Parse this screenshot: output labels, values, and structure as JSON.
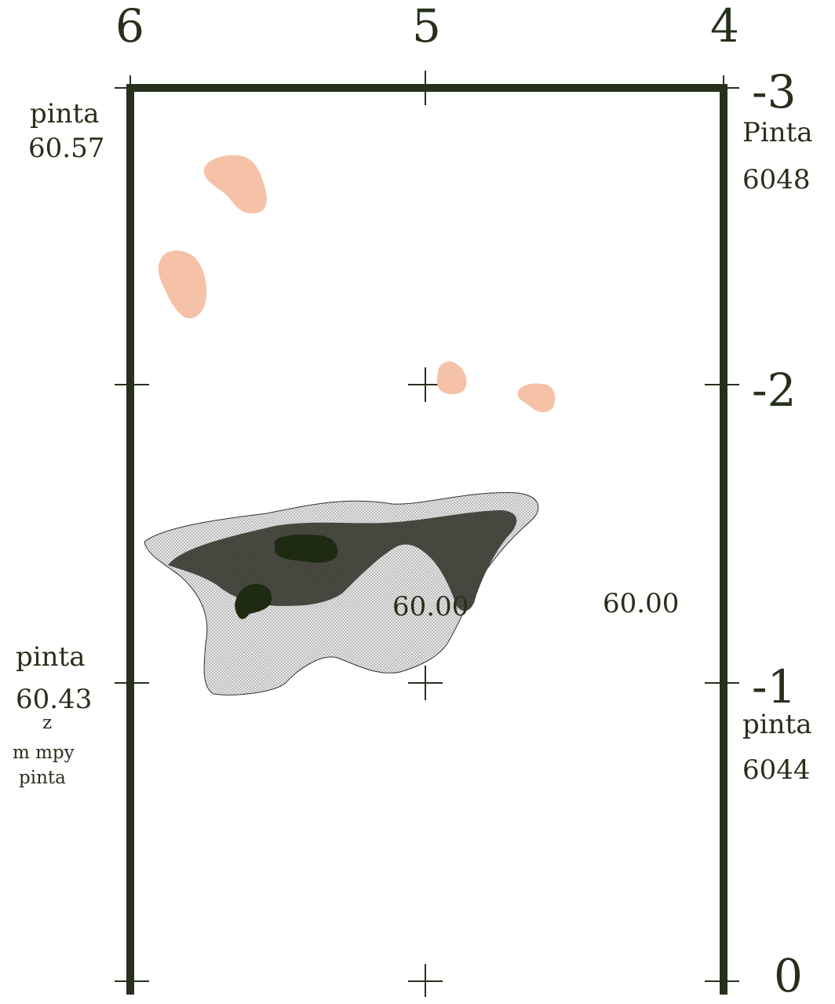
{
  "top_axis": {
    "left": "6",
    "mid": "5",
    "right": "4"
  },
  "right_axis": {
    "top": "-3",
    "upper": "-2",
    "lower": "-1",
    "bottom": "0"
  },
  "corner_labels": {
    "top_left_word": "pinta",
    "top_left_value": "60.57",
    "top_right_word": "Pinta",
    "top_right_value": "6048",
    "bottom_left_word": "pinta",
    "bottom_left_value": "60.43",
    "bottom_left_mark": "z",
    "bottom_left_note1": "m mpy",
    "bottom_left_note2": "pinta",
    "bottom_right_word": "pinta",
    "bottom_right_value": "6044"
  },
  "elevation_labels": {
    "inside_deposit": "60.00",
    "outside_deposit": "60.00"
  },
  "colors": {
    "frame": "#27301c",
    "light_patch": "#f5c2a7",
    "stipple_fill": "#dedede",
    "mid_tone": "#4a4a42",
    "dark_core": "#1f2a12"
  }
}
